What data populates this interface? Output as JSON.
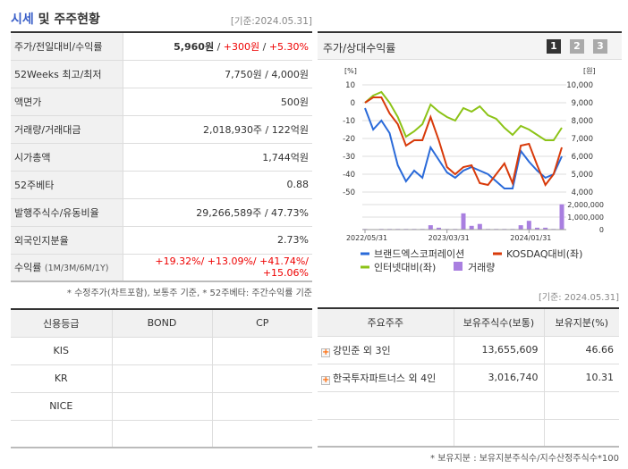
{
  "header": {
    "title_highlight": "시세",
    "title_rest": " 및 주주현황",
    "as_of": "[기준:2024.05.31]"
  },
  "quote": {
    "rows": [
      {
        "label": "주가/전일대비/수익률",
        "price": "5,960원",
        "sep1": " / ",
        "change": "+300원",
        "sep2": " / ",
        "rate": "+5.30%"
      },
      {
        "label": "52Weeks 최고/최저",
        "value": "7,750원 / 4,000원"
      },
      {
        "label": "액면가",
        "value": "500원"
      },
      {
        "label": "거래량/거래대금",
        "value": "2,018,930주 / 122억원"
      },
      {
        "label": "시가총액",
        "value": "1,744억원"
      },
      {
        "label": "52주베타",
        "value": "0.88"
      },
      {
        "label": "발행주식수/유동비율",
        "value": "29,266,589주 / 47.73%"
      },
      {
        "label": "외국인지분율",
        "value": "2.73%"
      },
      {
        "label": "수익률",
        "label_sub": "(1M/3M/6M/1Y)",
        "value": "+19.32%/ +13.09%/ +41.74%/ +15.06%"
      }
    ],
    "note": "* 수정주가(차트포함), 보통주 기준, * 52주베타: 주간수익률 기준"
  },
  "chart_panel": {
    "title": "주가/상대수익률",
    "pages": [
      "1",
      "2",
      "3"
    ],
    "active_page": "1"
  },
  "chart_data": {
    "type": "line",
    "left_unit": "[%]",
    "right_unit": "[원]",
    "left_ticks": [
      "10",
      "0",
      "-10",
      "-20",
      "-30",
      "-40",
      "-50"
    ],
    "right_ticks": [
      "10,000",
      "9,000",
      "8,000",
      "7,000",
      "6,000",
      "5,000",
      "4,000"
    ],
    "volume_ticks": [
      "2,000,000",
      "1,000,000",
      "0"
    ],
    "x_ticks": [
      "2022/05/31",
      "2023/03/31",
      "2024/01/31"
    ],
    "ylim_left": [
      -50,
      10
    ],
    "ylim_right": [
      4000,
      10000
    ],
    "volume_lim": [
      0,
      2000000
    ],
    "series": [
      {
        "name": "브랜드엑스코퍼레이션",
        "color": "#2a6ad9",
        "values": [
          -3,
          -15,
          -10,
          -17,
          -35,
          -44,
          -38,
          -42,
          -25,
          -32,
          -39,
          -42,
          -38,
          -36,
          -38,
          -40,
          -44,
          -48,
          -48,
          -27,
          -33,
          -38,
          -42,
          -40,
          -30
        ]
      },
      {
        "name": "KOSDAQ대비(좌)",
        "color": "#d83a0a",
        "values": [
          0,
          3,
          3,
          -6,
          -12,
          -24,
          -21,
          -21,
          -8,
          -21,
          -36,
          -40,
          -36,
          -35,
          -45,
          -46,
          -40,
          -34,
          -45,
          -24,
          -23,
          -35,
          -46,
          -40,
          -25
        ]
      },
      {
        "name": "인터넷대비(좌)",
        "color": "#8cc317",
        "values": [
          0,
          4,
          6,
          0,
          -8,
          -19,
          -16,
          -12,
          -1,
          -5,
          -8,
          -10,
          -3,
          -5,
          -2,
          -7,
          -9,
          -14,
          -18,
          -13,
          -15,
          -18,
          -21,
          -21,
          -14
        ]
      }
    ],
    "volume": {
      "name": "거래량",
      "color": "#a97fe0",
      "values": [
        50000,
        20000,
        50000,
        50000,
        50000,
        50000,
        50000,
        50000,
        350000,
        150000,
        50000,
        50000,
        1300000,
        300000,
        450000,
        50000,
        50000,
        50000,
        50000,
        350000,
        700000,
        150000,
        150000,
        50000,
        2018930
      ]
    }
  },
  "credit": {
    "headers": [
      "신용등급",
      "BOND",
      "CP"
    ],
    "rows": [
      [
        "KIS",
        "",
        ""
      ],
      [
        "KR",
        "",
        ""
      ],
      [
        "NICE",
        "",
        ""
      ],
      [
        "",
        "",
        ""
      ]
    ]
  },
  "shareholders": {
    "as_of": "[기준: 2024.05.31]",
    "headers": [
      "주요주주",
      "보유주식수(보통)",
      "보유지분(%)"
    ],
    "rows": [
      {
        "name": "강민준 외 3인",
        "shares": "13,655,609",
        "pct": "46.66"
      },
      {
        "name": "한국투자파트너스 외 4인",
        "shares": "3,016,740",
        "pct": "10.31"
      }
    ],
    "note": "* 보유지분 : 보유지분주식수/지수산정주식수*100"
  }
}
